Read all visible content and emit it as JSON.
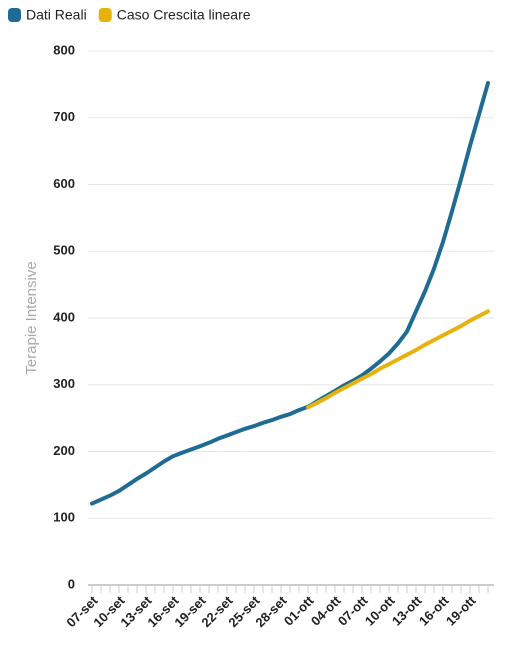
{
  "chart_data": {
    "type": "line",
    "y_label": "Terapie Intensive",
    "categories": [
      "07-set",
      null,
      null,
      "10-set",
      null,
      null,
      "13-set",
      null,
      null,
      "16-set",
      null,
      null,
      "19-set",
      null,
      null,
      "22-set",
      null,
      null,
      "25-set",
      null,
      null,
      "28-set",
      null,
      null,
      "01-ott",
      null,
      null,
      "04-ott",
      null,
      null,
      "07-ott",
      null,
      null,
      "10-ott",
      null,
      null,
      "13-ott",
      null,
      null,
      "16-ott",
      null,
      null,
      "19-ott",
      null,
      null
    ],
    "series": [
      {
        "name": "Dati Reali",
        "color": "#1f6b94",
        "values": [
          122,
          128,
          134,
          141,
          150,
          159,
          167,
          176,
          185,
          193,
          198,
          203,
          208,
          213,
          219,
          224,
          229,
          234,
          238,
          243,
          247,
          252,
          256,
          262,
          267,
          275,
          283,
          291,
          299,
          306,
          314,
          324,
          335,
          347,
          362,
          380,
          410,
          440,
          474,
          514,
          560,
          608,
          658,
          705,
          752
        ]
      },
      {
        "name": "Caso Crescita lineare",
        "color": "#e8b20e",
        "values": [
          null,
          null,
          null,
          null,
          null,
          null,
          null,
          null,
          null,
          null,
          null,
          null,
          null,
          null,
          null,
          null,
          null,
          null,
          null,
          null,
          null,
          null,
          null,
          null,
          266,
          273,
          280,
          288,
          295,
          302,
          309,
          316,
          324,
          331,
          338,
          345,
          352,
          360,
          367,
          374,
          381,
          388,
          396,
          403,
          410
        ]
      }
    ],
    "ylim": [
      0,
      800
    ],
    "yticks": [
      0,
      100,
      200,
      300,
      400,
      500,
      600,
      700,
      800
    ],
    "grid": true
  }
}
